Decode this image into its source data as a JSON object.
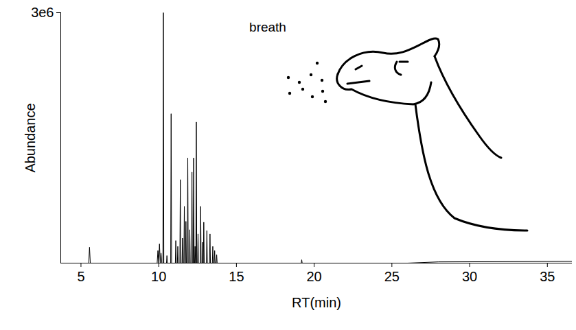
{
  "chart_data": {
    "type": "line",
    "x_label": "RT(min)",
    "y_label": "Abundance",
    "annotation": "breath",
    "color": "#000000",
    "xlim": [
      3.7,
      36.6
    ],
    "xticks": [
      5,
      10,
      15,
      20,
      25,
      30,
      35
    ],
    "ylim": [
      0,
      3000000
    ],
    "yticks": [
      {
        "value": 3000000,
        "label": "3e6"
      }
    ],
    "x": [
      3.7,
      5.5,
      5.55,
      5.6,
      9.9,
      9.95,
      10.0,
      10.05,
      10.1,
      10.15,
      10.2,
      10.27,
      10.3,
      10.33,
      10.5,
      10.53,
      10.56,
      10.77,
      10.8,
      10.83,
      11.07,
      11.1,
      11.13,
      11.2,
      11.23,
      11.26,
      11.36,
      11.39,
      11.42,
      11.5,
      11.53,
      11.56,
      11.62,
      11.65,
      11.68,
      11.72,
      11.75,
      11.78,
      11.84,
      11.87,
      11.9,
      11.97,
      12.0,
      12.03,
      12.11,
      12.14,
      12.17,
      12.22,
      12.25,
      12.28,
      12.31,
      12.34,
      12.37,
      12.39,
      12.42,
      12.45,
      12.5,
      12.53,
      12.56,
      12.67,
      12.7,
      12.73,
      12.8,
      12.83,
      12.86,
      12.87,
      12.9,
      12.93,
      13.07,
      13.1,
      13.13,
      13.27,
      13.3,
      13.33,
      13.45,
      13.48,
      13.51,
      13.57,
      13.6,
      13.63,
      13.7,
      13.73,
      13.76,
      19.17,
      19.2,
      19.23,
      26,
      28,
      36.6
    ],
    "values": [
      0,
      0,
      190000,
      0,
      0,
      150000,
      0,
      230000,
      0,
      120000,
      0,
      0,
      3000000,
      0,
      0,
      90000,
      0,
      0,
      1790000,
      0,
      0,
      270000,
      0,
      0,
      200000,
      0,
      0,
      1000000,
      0,
      0,
      300000,
      0,
      0,
      680000,
      0,
      0,
      500000,
      0,
      0,
      1260000,
      0,
      0,
      400000,
      0,
      0,
      1090000,
      0,
      0,
      1260000,
      0,
      0,
      200000,
      0,
      0,
      1690000,
      0,
      0,
      350000,
      0,
      0,
      680000,
      0,
      0,
      250000,
      0,
      0,
      490000,
      0,
      0,
      390000,
      0,
      0,
      350000,
      0,
      0,
      200000,
      0,
      0,
      150000,
      0,
      0,
      100000,
      0,
      0,
      40000,
      0,
      0,
      15000,
      20000
    ]
  }
}
